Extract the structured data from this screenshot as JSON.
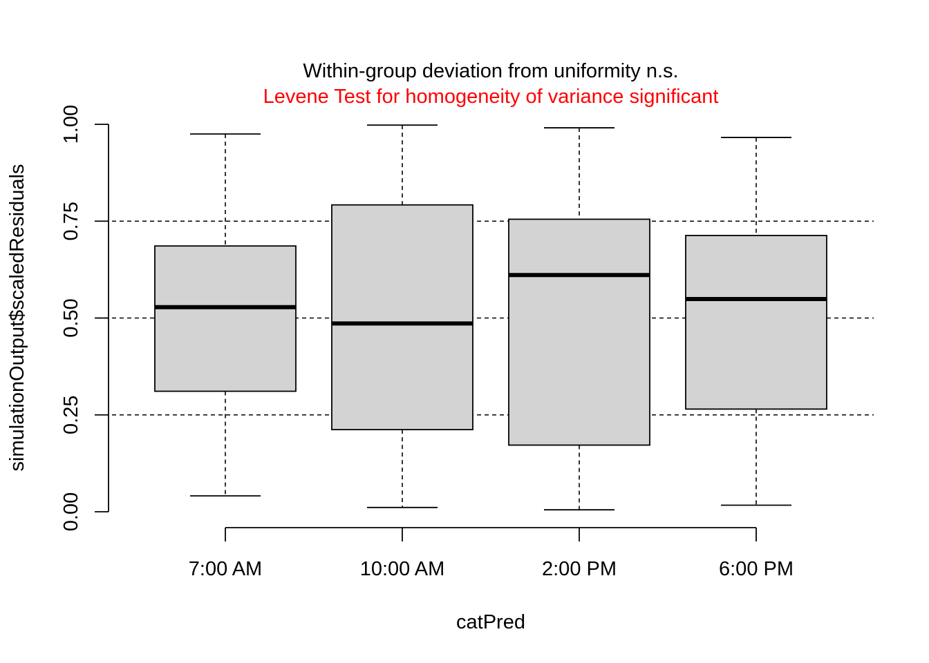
{
  "chart_data": {
    "type": "boxplot",
    "title": "Within-group deviation from uniformity n.s.",
    "subtitle": "Levene Test for homogeneity of variance significant",
    "xlabel": "catPred",
    "ylabel": "simulationOutput$scaledResiduals",
    "ylim": [
      0,
      1
    ],
    "yticks": [
      "0.00",
      "0.25",
      "0.50",
      "0.75",
      "1.00"
    ],
    "reference_lines": [
      0.25,
      0.5,
      0.75
    ],
    "categories": [
      "7:00 AM",
      "10:00 AM",
      "2:00 PM",
      "6:00 PM"
    ],
    "boxes": [
      {
        "category": "7:00 AM",
        "min": 0.041,
        "q1": 0.311,
        "median": 0.528,
        "q3": 0.686,
        "max": 0.975
      },
      {
        "category": "10:00 AM",
        "min": 0.011,
        "q1": 0.212,
        "median": 0.486,
        "q3": 0.792,
        "max": 0.998
      },
      {
        "category": "2:00 PM",
        "min": 0.005,
        "q1": 0.172,
        "median": 0.611,
        "q3": 0.755,
        "max": 0.991
      },
      {
        "category": "6:00 PM",
        "min": 0.017,
        "q1": 0.265,
        "median": 0.549,
        "q3": 0.713,
        "max": 0.966
      }
    ],
    "box_fill": "#d3d3d3",
    "subtitle_color": "#ff0000",
    "grid": false
  }
}
